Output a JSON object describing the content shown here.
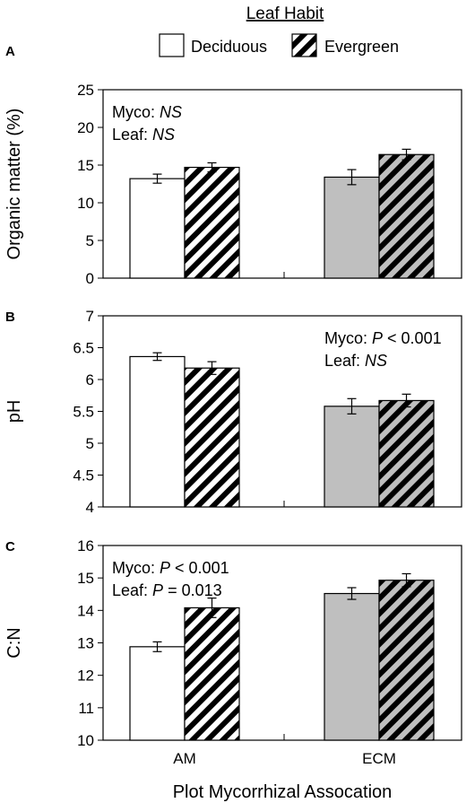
{
  "legend": {
    "title": "Leaf Habit",
    "entries": [
      {
        "label": "Deciduous",
        "pattern": "solid"
      },
      {
        "label": "Evergreen",
        "pattern": "striped"
      }
    ]
  },
  "xlabel": "Plot Mycorrhizal Assocation",
  "categories": [
    "AM",
    "ECM"
  ],
  "colors": {
    "am_fill": "#ffffff",
    "ecm_fill": "#bfbfbf",
    "stripe": "#000000",
    "axis": "#000000"
  },
  "chart_data": [
    {
      "type": "bar",
      "panel_label": "A",
      "ylabel": "Organic matter (%)",
      "ylim": [
        0,
        25
      ],
      "yticks": [
        "0",
        "5",
        "10",
        "15",
        "20",
        "25"
      ],
      "categories": [
        "AM",
        "ECM"
      ],
      "series": [
        {
          "name": "Deciduous",
          "values": [
            13.2,
            13.4
          ],
          "errors": [
            0.6,
            1.0
          ]
        },
        {
          "name": "Evergreen",
          "values": [
            14.7,
            16.4
          ],
          "errors": [
            0.6,
            0.7
          ]
        }
      ],
      "annotation": [
        {
          "prefix": "Myco: ",
          "italic": "NS",
          "suffix": ""
        },
        {
          "prefix": "Leaf: ",
          "italic": "NS",
          "suffix": ""
        }
      ],
      "annotation_position": "top-left"
    },
    {
      "type": "bar",
      "panel_label": "B",
      "ylabel": "pH",
      "ylim": [
        4,
        7
      ],
      "yticks": [
        "4",
        "4.5",
        "5",
        "5.5",
        "6",
        "6.5",
        "7"
      ],
      "categories": [
        "AM",
        "ECM"
      ],
      "series": [
        {
          "name": "Deciduous",
          "values": [
            6.36,
            5.58
          ],
          "errors": [
            0.06,
            0.12
          ]
        },
        {
          "name": "Evergreen",
          "values": [
            6.18,
            5.67
          ],
          "errors": [
            0.1,
            0.1
          ]
        }
      ],
      "annotation": [
        {
          "prefix": "Myco: ",
          "italic": "P",
          "suffix": " < 0.001"
        },
        {
          "prefix": "Leaf: ",
          "italic": "NS",
          "suffix": ""
        }
      ],
      "annotation_position": "top-right"
    },
    {
      "type": "bar",
      "panel_label": "C",
      "ylabel": "C:N",
      "ylim": [
        10,
        16
      ],
      "yticks": [
        "10",
        "11",
        "12",
        "13",
        "14",
        "15",
        "16"
      ],
      "categories": [
        "AM",
        "ECM"
      ],
      "series": [
        {
          "name": "Deciduous",
          "values": [
            12.88,
            14.52
          ],
          "errors": [
            0.15,
            0.18
          ]
        },
        {
          "name": "Evergreen",
          "values": [
            14.08,
            14.93
          ],
          "errors": [
            0.3,
            0.2
          ]
        }
      ],
      "annotation": [
        {
          "prefix": "Myco: ",
          "italic": "P",
          "suffix": " < 0.001"
        },
        {
          "prefix": "Leaf: ",
          "italic": "P",
          "suffix": " = 0.013"
        }
      ],
      "annotation_position": "top-left"
    }
  ]
}
